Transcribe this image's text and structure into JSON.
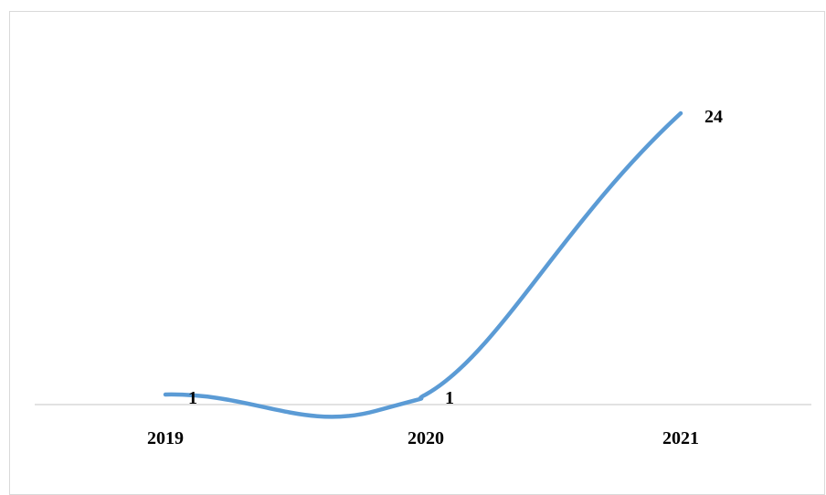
{
  "chart_data": {
    "type": "line",
    "title": "",
    "xlabel": "",
    "ylabel": "",
    "categories": [
      "2019",
      "2020",
      "2021"
    ],
    "series": [
      {
        "values": [
          1,
          1,
          24
        ]
      }
    ],
    "data_labels": [
      "1",
      "1",
      "24"
    ],
    "ylim": [
      0,
      28
    ],
    "smooth": true,
    "grid": false,
    "legend": "none",
    "line_color": "#5b9bd5",
    "axis_color": "#d9d9d9"
  }
}
